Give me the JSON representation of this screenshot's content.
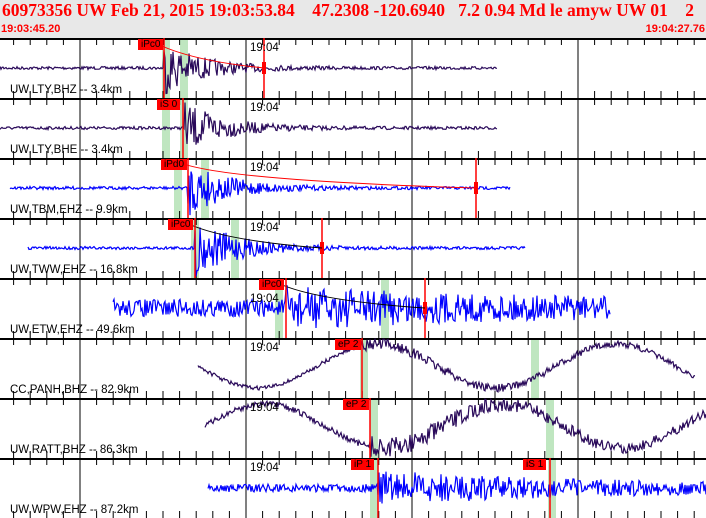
{
  "header": {
    "title": "60973356 UW Feb 21, 2015 19:03:53.84    47.2308 -120.6940   7.2 0.94 Md le amyw UW 01    2",
    "start_time": "19:03:45.20",
    "end_time": "19:04:27.76"
  },
  "colors": {
    "header_bg": "#e8e8e8",
    "text_red": "#ff0000",
    "trace_broadband": "#2a0a5a",
    "trace_short_period": "#0000ff",
    "pick": "#ff0000",
    "window": "#bfe6c0"
  },
  "minute_label": "19:04",
  "channels": [
    {
      "label": "UW,LTY,BHZ -- 3.4km",
      "picks": [
        "iPc0"
      ]
    },
    {
      "label": "UW,LTY,BHE -- 3.4km",
      "picks": [
        "iS 0"
      ]
    },
    {
      "label": "UW,TBM,EHZ -- 9.9km",
      "picks": [
        "iPd0"
      ]
    },
    {
      "label": "UW,TWW,EHZ -- 16.8km",
      "picks": [
        "iPc0"
      ]
    },
    {
      "label": "UW,ETW,EHZ -- 49.6km",
      "picks": [
        "iPc0"
      ]
    },
    {
      "label": "CC,PANH,BHZ -- 82.9km",
      "picks": [
        "eP 2"
      ]
    },
    {
      "label": "UW,RATT,BHZ -- 86.3km",
      "picks": [
        "eP 2"
      ]
    },
    {
      "label": "UW,WPW,EHZ -- 87.2km",
      "picks": [
        "iP 1",
        "iS 1"
      ]
    }
  ]
}
